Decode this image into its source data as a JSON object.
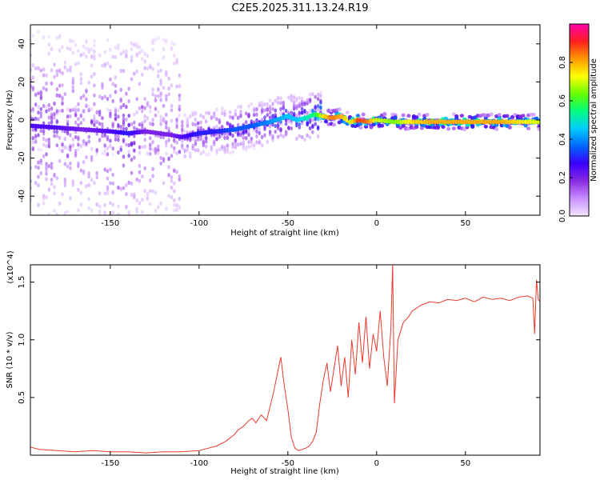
{
  "title": "C2E5.2025.311.13.24.R19",
  "chart_data": [
    {
      "type": "heatmap",
      "name": "spectrogram",
      "xlabel": "Height of straight line (km)",
      "ylabel": "Frequency (Hz)",
      "xlim": [
        -195,
        92
      ],
      "ylim": [
        -50,
        50
      ],
      "xticks": [
        -150,
        -100,
        -50,
        0,
        50
      ],
      "yticks": [
        -40,
        -20,
        0,
        20,
        40
      ],
      "colorbar": {
        "label": "Normalized spectral amplitude",
        "range": [
          0.0,
          1.0
        ],
        "ticks": [
          "0.0",
          "0.2",
          "0.4",
          "0.6",
          "0.8"
        ],
        "tick_values": [
          0.0,
          0.2,
          0.4,
          0.6,
          0.8
        ],
        "colors": [
          "#f2e6ff",
          "#c890ff",
          "#8a2be2",
          "#3a00ff",
          "#0066ff",
          "#00ccff",
          "#00ff80",
          "#66ff00",
          "#ffff00",
          "#ff9900",
          "#ff2020",
          "#ff00aa"
        ]
      },
      "ridge": {
        "description": "dominant frequency vs height",
        "x": [
          -195,
          -180,
          -165,
          -150,
          -140,
          -130,
          -115,
          -110,
          -100,
          -90,
          -80,
          -70,
          -60,
          -50,
          -45,
          -40,
          -35,
          -30,
          -25,
          -20,
          -15,
          -10,
          -5,
          0,
          10,
          20,
          30,
          40,
          50,
          60,
          70,
          80,
          92
        ],
        "freq": [
          -3,
          -4,
          -5,
          -6,
          -7,
          -6,
          -8,
          -9,
          -7,
          -6,
          -5,
          -3,
          -1,
          2,
          0,
          1,
          3,
          2,
          1,
          2,
          -1,
          0,
          -1,
          0,
          -1,
          -1,
          -1,
          -1,
          -1,
          -1,
          -1,
          -1,
          -1
        ],
        "amplitude": [
          0.25,
          0.25,
          0.2,
          0.25,
          0.3,
          0.2,
          0.2,
          0.25,
          0.3,
          0.3,
          0.35,
          0.35,
          0.4,
          0.45,
          0.45,
          0.5,
          0.55,
          0.75,
          0.85,
          0.8,
          0.7,
          0.9,
          0.85,
          0.7,
          0.65,
          0.75,
          0.8,
          0.8,
          0.8,
          0.8,
          0.8,
          0.75,
          0.7
        ]
      }
    },
    {
      "type": "line",
      "name": "snr",
      "xlabel": "Height of straight line (km)",
      "ylabel": "SNR (10 * v/v)",
      "yunit": "(x10^4)",
      "xlim": [
        -195,
        92
      ],
      "ylim": [
        0,
        1.65
      ],
      "xticks": [
        -150,
        -100,
        -50,
        0,
        50
      ],
      "yticks": [
        0.5,
        1.0,
        1.5
      ],
      "ytick_labels": [
        "0.5",
        "1.0",
        "1.5"
      ],
      "color": "#e83a2e",
      "series": [
        {
          "name": "SNR",
          "x": [
            -195,
            -190,
            -180,
            -170,
            -160,
            -150,
            -140,
            -130,
            -120,
            -110,
            -100,
            -95,
            -90,
            -85,
            -80,
            -78,
            -75,
            -72,
            -70,
            -68,
            -65,
            -62,
            -60,
            -58,
            -56,
            -54,
            -52,
            -50,
            -48,
            -46,
            -44,
            -42,
            -40,
            -38,
            -36,
            -34,
            -32,
            -30,
            -28,
            -26,
            -24,
            -22,
            -20,
            -18,
            -16,
            -14,
            -12,
            -10,
            -8,
            -6,
            -4,
            -2,
            0,
            2,
            4,
            6,
            8,
            9,
            10,
            12,
            15,
            18,
            20,
            25,
            30,
            35,
            40,
            45,
            50,
            55,
            60,
            65,
            70,
            75,
            80,
            85,
            88,
            89,
            90,
            91,
            92
          ],
          "y": [
            0.07,
            0.05,
            0.04,
            0.03,
            0.04,
            0.03,
            0.03,
            0.02,
            0.03,
            0.03,
            0.04,
            0.06,
            0.08,
            0.12,
            0.18,
            0.22,
            0.25,
            0.3,
            0.32,
            0.28,
            0.35,
            0.3,
            0.42,
            0.55,
            0.7,
            0.85,
            0.6,
            0.4,
            0.15,
            0.06,
            0.04,
            0.05,
            0.06,
            0.08,
            0.12,
            0.2,
            0.45,
            0.65,
            0.8,
            0.55,
            0.75,
            0.95,
            0.6,
            0.85,
            0.5,
            1.0,
            0.7,
            1.15,
            0.8,
            1.2,
            0.75,
            1.05,
            0.9,
            1.25,
            0.85,
            0.6,
            1.1,
            1.65,
            0.45,
            1.0,
            1.15,
            1.2,
            1.25,
            1.3,
            1.33,
            1.32,
            1.35,
            1.34,
            1.36,
            1.33,
            1.37,
            1.35,
            1.36,
            1.34,
            1.37,
            1.38,
            1.36,
            1.05,
            1.52,
            1.35,
            1.33
          ]
        }
      ]
    }
  ]
}
